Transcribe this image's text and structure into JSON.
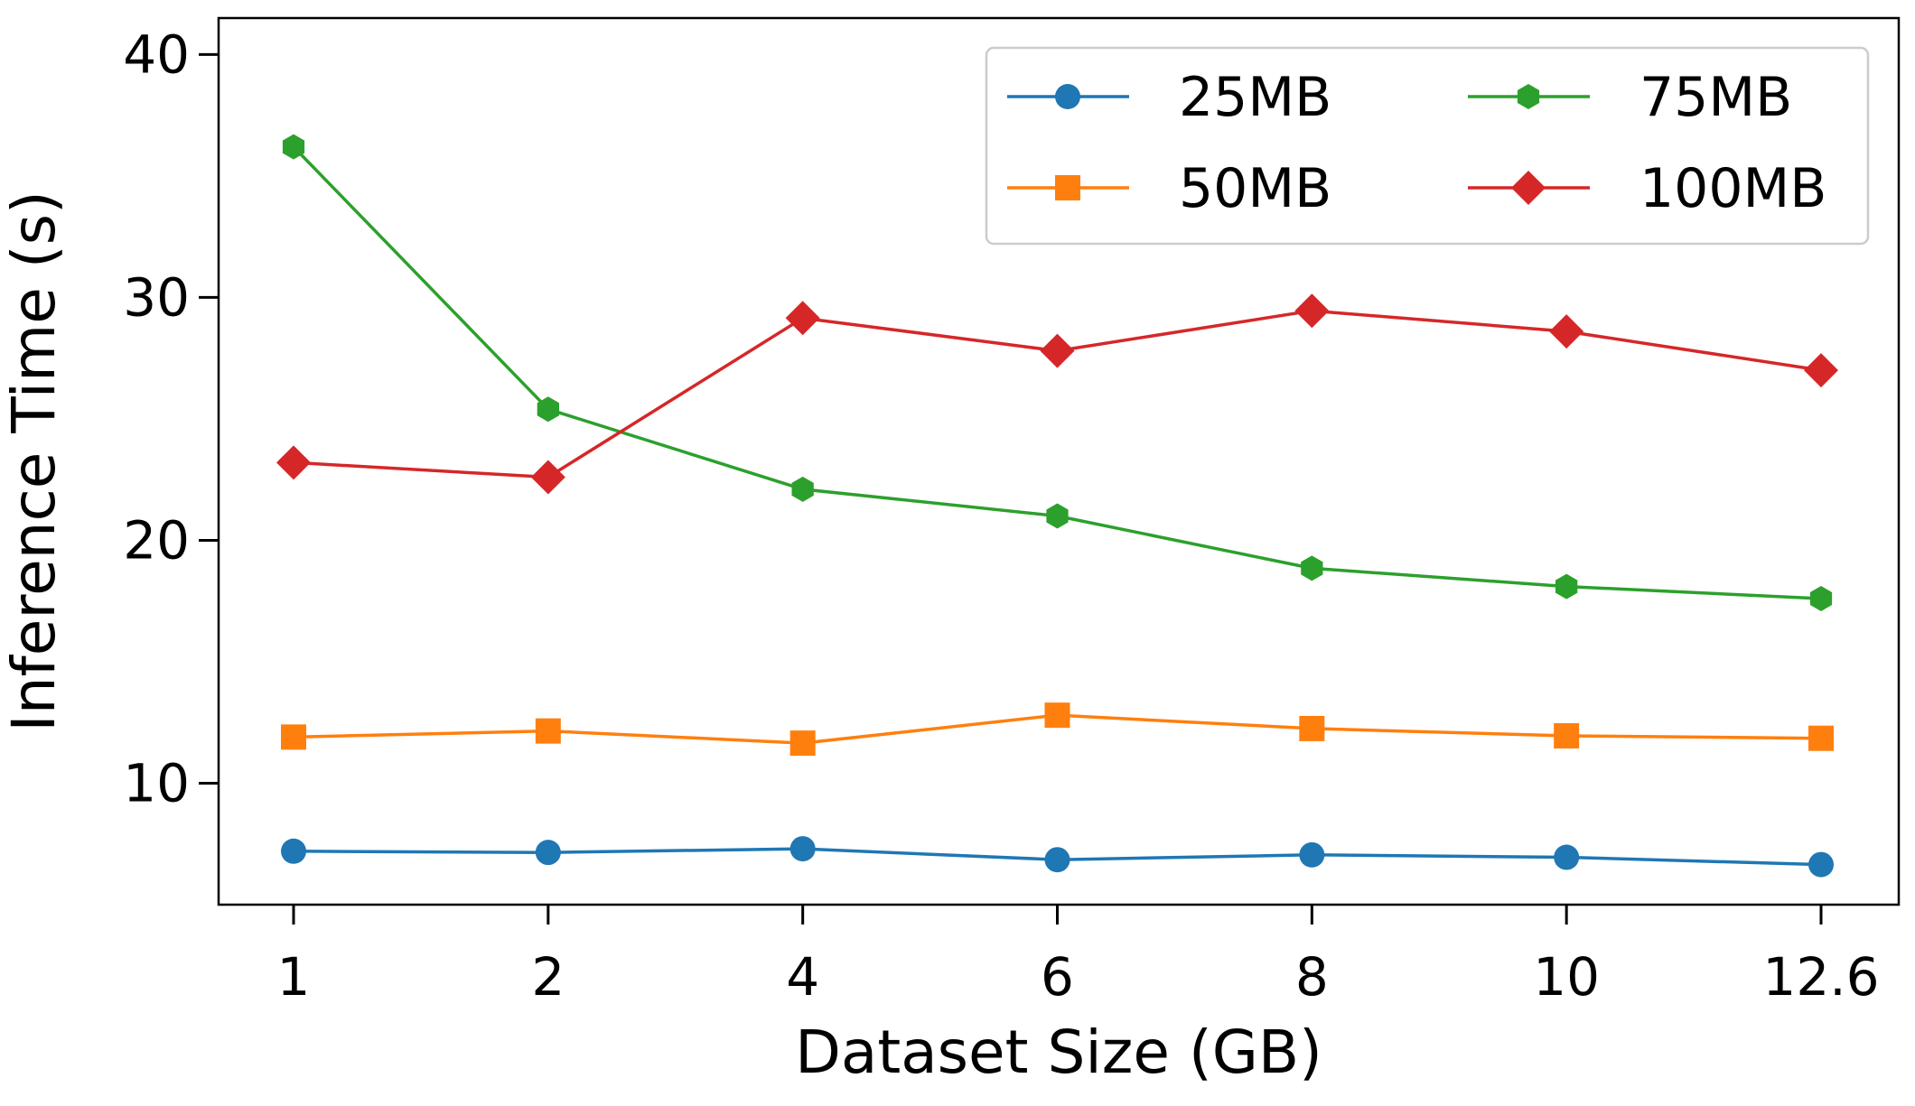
{
  "chart_data": {
    "type": "line",
    "title": "",
    "xlabel": "Dataset Size (GB)",
    "ylabel": "Inference Time (s)",
    "categories": [
      "1",
      "2",
      "4",
      "6",
      "8",
      "10",
      "12.6"
    ],
    "ylim": [
      5,
      41.5
    ],
    "yticks": [
      10,
      20,
      30,
      40
    ],
    "ytick_labels": [
      "10",
      "20",
      "30",
      "40"
    ],
    "grid": false,
    "legend_position": "top-right",
    "series": [
      {
        "name": "25MB",
        "color": "#1f77b4",
        "marker": "circle",
        "values": [
          7.2,
          7.15,
          7.3,
          6.85,
          7.05,
          6.95,
          6.65
        ]
      },
      {
        "name": "50MB",
        "color": "#ff7f0e",
        "marker": "square",
        "values": [
          11.9,
          12.15,
          11.65,
          12.8,
          12.25,
          11.95,
          11.85
        ]
      },
      {
        "name": "75MB",
        "color": "#2ca02c",
        "marker": "hexagon",
        "values": [
          36.2,
          25.4,
          22.1,
          21.0,
          18.85,
          18.1,
          17.6
        ]
      },
      {
        "name": "100MB",
        "color": "#d62728",
        "marker": "diamond",
        "values": [
          23.2,
          22.6,
          29.15,
          27.8,
          29.45,
          28.6,
          27.0
        ]
      }
    ]
  }
}
